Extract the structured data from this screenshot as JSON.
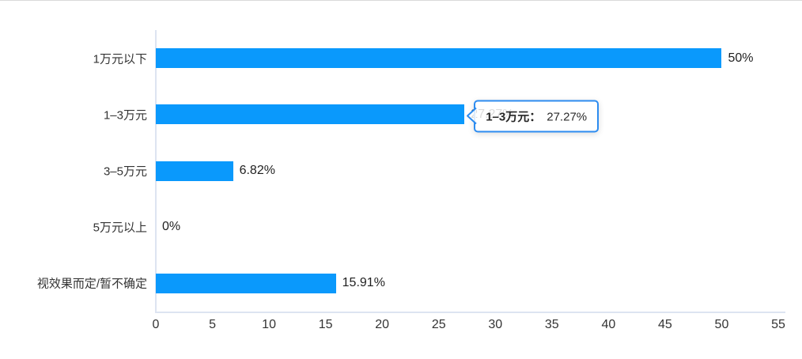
{
  "chart_data": {
    "type": "bar",
    "orientation": "horizontal",
    "title": "",
    "categories": [
      "1万元以下",
      "1–3万元",
      "3–5万元",
      "5万元以上",
      "视效果而定/暂不确定"
    ],
    "values": [
      50,
      27.27,
      6.82,
      0,
      15.91
    ],
    "value_labels": [
      "50%",
      "27.27%",
      "6.82%",
      "0%",
      "15.91%"
    ],
    "xlim": [
      0,
      55
    ],
    "x_ticks": [
      0,
      5,
      10,
      15,
      20,
      25,
      30,
      35,
      40,
      45,
      50,
      55
    ],
    "grid": false,
    "legend": "none",
    "bar_color": "#0a99fc",
    "axis_line_color": "#dde4f1",
    "label_color": "#333333"
  },
  "tooltip": {
    "category": "1–3万元",
    "separator": "：",
    "value": "27.27%",
    "target_index": 1,
    "border_color": "#2d8cf0"
  },
  "page": {
    "background": "#ffffff",
    "top_divider_color": "#d9d9d9"
  }
}
